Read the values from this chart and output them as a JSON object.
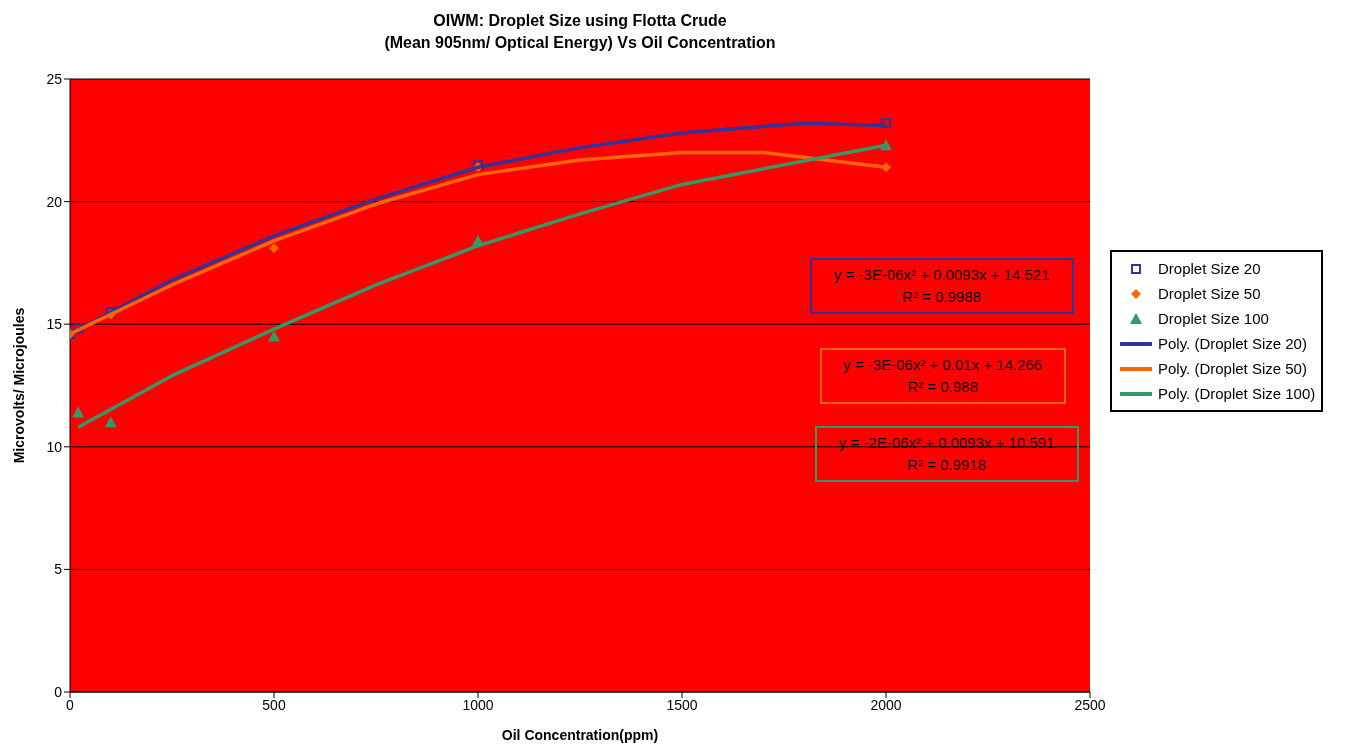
{
  "chart_data": {
    "type": "scatter",
    "title": "OIWM: Droplet Size using Flotta Crude",
    "subtitle": "(Mean 905nm/ Optical Energy) Vs Oil Concentration",
    "xlabel": "Oil Concentration(ppm)",
    "ylabel": "Microvolts/ Microjoules",
    "xlim": [
      0,
      2500
    ],
    "xticks": [
      0,
      500,
      1000,
      1500,
      2000,
      2500
    ],
    "ylim": [
      0,
      25
    ],
    "yticks": [
      0,
      5,
      10,
      15,
      20,
      25
    ],
    "grid": "y",
    "legend": "right",
    "series": [
      {
        "name": "Droplet Size 20",
        "marker": "square",
        "color": "#333399",
        "x": [
          0,
          20,
          100,
          500,
          1000,
          2000
        ],
        "values": [
          14.6,
          14.8,
          15.5,
          null,
          21.5,
          23.2
        ]
      },
      {
        "name": "Droplet Size 50",
        "marker": "diamond",
        "color": "#ff6600",
        "x": [
          0,
          20,
          100,
          500,
          1000,
          2000
        ],
        "values": [
          14.6,
          null,
          15.4,
          18.1,
          21.4,
          21.4
        ]
      },
      {
        "name": "Droplet Size 100",
        "marker": "triangle",
        "color": "#339966",
        "x": [
          20,
          100,
          500,
          1000,
          2000
        ],
        "values": [
          11.4,
          11.0,
          14.5,
          18.4,
          22.3
        ]
      },
      {
        "name": "Poly. (Droplet Size 20)",
        "type": "line",
        "marker": "none",
        "color": "#333399",
        "x": [
          0,
          250,
          500,
          750,
          1000,
          1250,
          1500,
          1800,
          2000
        ],
        "values": [
          14.6,
          16.8,
          18.6,
          20.1,
          21.4,
          22.2,
          22.8,
          23.2,
          23.1
        ]
      },
      {
        "name": "Poly. (Droplet Size 50)",
        "type": "line",
        "marker": "none",
        "color": "#ff6600",
        "x": [
          0,
          250,
          500,
          750,
          1000,
          1250,
          1500,
          1700,
          2000
        ],
        "values": [
          14.6,
          16.6,
          18.4,
          19.9,
          21.1,
          21.7,
          22.0,
          22.0,
          21.4
        ]
      },
      {
        "name": "Poly. (Droplet Size 100)",
        "type": "line",
        "marker": "none",
        "color": "#339966",
        "x": [
          20,
          250,
          500,
          750,
          1000,
          1250,
          1500,
          2000
        ],
        "values": [
          10.8,
          12.9,
          14.8,
          16.6,
          18.2,
          19.5,
          20.7,
          22.3
        ]
      }
    ],
    "annotations": [
      "y = -3E-06x² + 0.0093x + 14.521",
      "R² = 0.9988",
      "y = -3E-06x² + 0.01x + 14.266",
      "R² = 0.988",
      "y = -2E-06x² + 0.0093x + 10.591",
      "R² = 0.9918"
    ]
  }
}
